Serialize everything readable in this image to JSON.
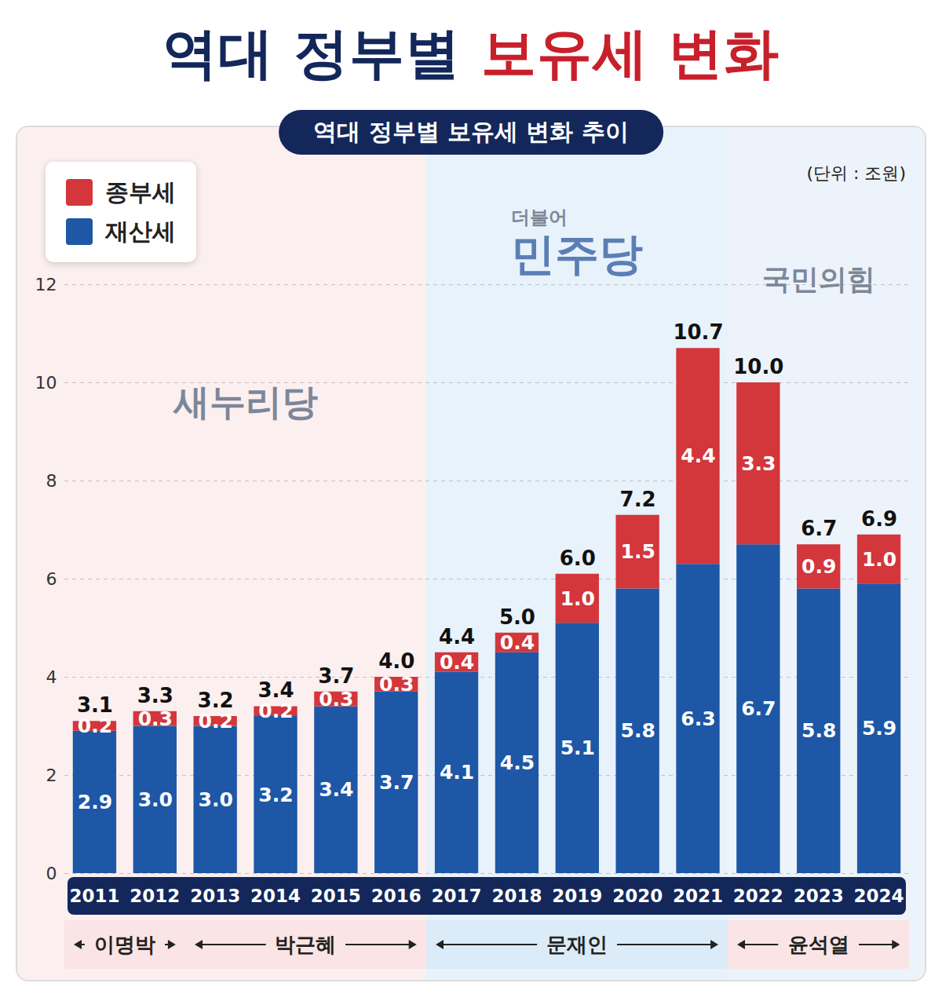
{
  "chart_data": {
    "type": "bar",
    "stacked": true,
    "title": "역대 정부별 보유세 변화",
    "subtitle": "역대 정부별 보유세 변화 추이",
    "unit_label": "(단위 : 조원)",
    "categories": [
      "2011",
      "2012",
      "2013",
      "2014",
      "2015",
      "2016",
      "2017",
      "2018",
      "2019",
      "2020",
      "2021",
      "2022",
      "2023",
      "2024"
    ],
    "series": [
      {
        "name": "재산세",
        "color": "#1d57a6",
        "values": [
          2.9,
          3.0,
          3.0,
          3.2,
          3.4,
          3.7,
          4.1,
          4.5,
          5.1,
          5.8,
          6.3,
          6.7,
          5.8,
          5.9
        ],
        "value_labels": [
          "2.9",
          "3.0",
          "3.0",
          "3.2",
          "3.4",
          "3.7",
          "4.1",
          "4.5",
          "5.1",
          "5.8",
          "6.3",
          "6.7",
          "5.8",
          "5.9"
        ]
      },
      {
        "name": "종부세",
        "color": "#d3363b",
        "values": [
          0.2,
          0.3,
          0.2,
          0.2,
          0.3,
          0.3,
          0.4,
          0.4,
          1.0,
          1.5,
          4.4,
          3.3,
          0.9,
          1.0
        ],
        "value_labels": [
          "0.2",
          "0.3",
          "0.2",
          "0.2",
          "0.3",
          "0.3",
          "0.4",
          "0.4",
          "1.0",
          "1.5",
          "4.4",
          "3.3",
          "0.9",
          "1.0"
        ]
      }
    ],
    "totals": [
      3.1,
      3.3,
      3.2,
      3.4,
      3.7,
      4.0,
      4.4,
      5.0,
      6.0,
      7.2,
      10.7,
      10.0,
      6.7,
      6.9
    ],
    "total_labels": [
      "3.1",
      "3.3",
      "3.2",
      "3.4",
      "3.7",
      "4.0",
      "4.4",
      "5.0",
      "6.0",
      "7.2",
      "10.7",
      "10.0",
      "6.7",
      "6.9"
    ],
    "ylim": [
      0,
      12
    ],
    "yticks": [
      0,
      2,
      4,
      6,
      8,
      10,
      12
    ],
    "grid": true,
    "data_labels": true,
    "legend": "top-left",
    "parties": [
      {
        "name": "새누리당",
        "start": "2011",
        "end": "2016",
        "color": "#fcefef"
      },
      {
        "name": "더불어 민주당",
        "start": "2017",
        "end": "2021",
        "color": "#e8f2fb"
      },
      {
        "name": "국민의힘",
        "start": "2022",
        "end": "2024",
        "color": "#edf3fa"
      }
    ],
    "periods": [
      {
        "name": "이명박",
        "start": "2011",
        "end": "2012",
        "color": "#fbe4e5"
      },
      {
        "name": "박근혜",
        "start": "2013",
        "end": "2016",
        "color": "#fbe4e5"
      },
      {
        "name": "문재인",
        "start": "2017",
        "end": "2021",
        "color": "#dcebf8"
      },
      {
        "name": "윤석열",
        "start": "2022",
        "end": "2024",
        "color": "#fbe4e5"
      }
    ]
  }
}
